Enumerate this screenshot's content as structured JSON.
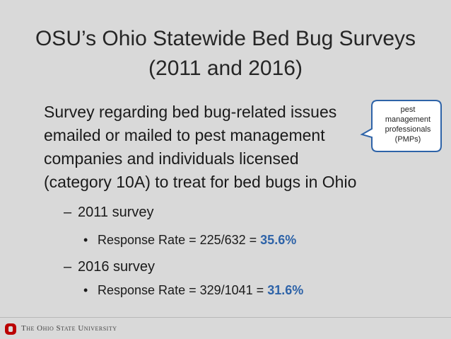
{
  "slide": {
    "title_line1": "OSU’s Ohio Statewide Bed Bug Surveys",
    "title_line2": "(2011 and 2016)",
    "body_lines": [
      "Survey regarding bed bug-related issues",
      "emailed or mailed to pest management",
      "companies and individuals licensed",
      "(category 10A) to treat for bed bugs in Ohio"
    ],
    "surveys": [
      {
        "dash": "–",
        "label": "2011 survey",
        "bullet": "•",
        "rate_text": "Response Rate = 225/632 = ",
        "rate_value": "35.6%"
      },
      {
        "dash": "–",
        "label": "2016 survey",
        "bullet": "•",
        "rate_text": "Response Rate = 329/1041 = ",
        "rate_value": "31.6%"
      }
    ],
    "callout": {
      "lines": [
        "pest",
        "management",
        "professionals",
        "(PMPs)"
      ]
    },
    "footer": {
      "university": "The Ohio State University",
      "logo_icon": "block-o-icon",
      "accent_color": "#bb0000"
    }
  }
}
